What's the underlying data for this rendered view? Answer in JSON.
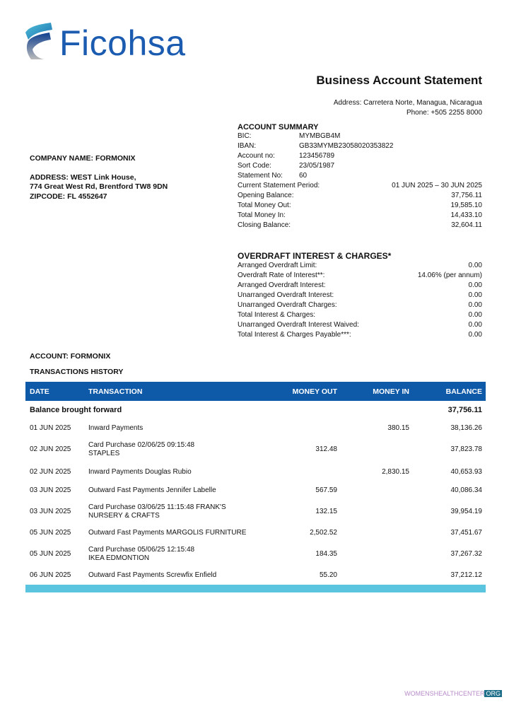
{
  "brand": {
    "name": "Ficohsa",
    "colors": {
      "primary": "#1b5bb0",
      "accent": "#5bc4df"
    }
  },
  "header": {
    "title": "Business Account Statement",
    "address": "Address: Carretera Norte, Managua, Nicaragua",
    "phone": "Phone:  +505 2255 8000"
  },
  "company": {
    "name": "COMPANY NAME: FORMONIX",
    "address_line1": "ADDRESS: WEST Link House,",
    "address_line2": "774 Great West Rd, Brentford TW8 9DN",
    "zipcode": "ZIPCODE: FL 4552647"
  },
  "summary": {
    "heading": "ACCOUNT SUMMARY",
    "short": [
      {
        "k": "BIC:",
        "v": "MYMBGB4M"
      },
      {
        "k": "IBAN:",
        "v": "GB33MYMB23058020353822"
      },
      {
        "k": "Account no:",
        "v": "123456789"
      },
      {
        "k": "Sort Code:",
        "v": "23/05/1987"
      },
      {
        "k": "Statement No:",
        "v": "60"
      }
    ],
    "long": [
      {
        "k": "Current Statement Period:",
        "v": "01 JUN 2025 – 30 JUN 2025"
      },
      {
        "k": "Opening Balance:",
        "v": "37,756.11"
      },
      {
        "k": "Total Money Out:",
        "v": "19,585.10"
      },
      {
        "k": "Total Money In:",
        "v": "14,433.10"
      },
      {
        "k": "Closing Balance:",
        "v": "32,604.11"
      }
    ]
  },
  "overdraft": {
    "heading": "OVERDRAFT INTEREST & CHARGES*",
    "items": [
      {
        "k": "Arranged Overdraft Limit:",
        "v": "0.00"
      },
      {
        "k": "Overdraft Rate of Interest**:",
        "v": "14.06% (per annum)"
      },
      {
        "k": "Arranged Overdraft Interest:",
        "v": "0.00"
      },
      {
        "k": "Unarranged Overdraft Interest:",
        "v": "0.00"
      },
      {
        "k": "Unarranged Overdraft Charges:",
        "v": "0.00"
      },
      {
        "k": "Total Interest & Charges:",
        "v": "0.00"
      },
      {
        "k": "Unarranged Overdraft Interest Waived:",
        "v": "0.00"
      },
      {
        "k": "Total Interest & Charges Payable***:",
        "v": "0.00"
      }
    ]
  },
  "account_label": "ACCOUNT: FORMONIX",
  "history_label": "TRANSACTIONS HISTORY",
  "table": {
    "columns": [
      "DATE",
      "TRANSACTION",
      "MONEY OUT",
      "MONEY IN",
      "BALANCE"
    ],
    "brought_forward": {
      "label": "Balance brought forward",
      "balance": "37,756.11"
    },
    "rows": [
      {
        "date": "01 JUN 2025",
        "tx": "Inward Payments",
        "out": "",
        "in": "380.15",
        "bal": "38,136.26"
      },
      {
        "date": "02 JUN 2025",
        "tx": "Card Purchase 02/06/25 09:15:48\nSTAPLES",
        "out": "312.48",
        "in": "",
        "bal": "37,823.78"
      },
      {
        "date": "02 JUN 2025",
        "tx": "Inward Payments Douglas Rubio",
        "out": "",
        "in": "2,830.15",
        "bal": "40,653.93"
      },
      {
        "date": "03 JUN 2025",
        "tx": "Outward Fast Payments Jennifer Labelle",
        "out": "567.59",
        "in": "",
        "bal": "40,086.34"
      },
      {
        "date": "03 JUN 2025",
        "tx": "Card Purchase 03/06/25 11:15:48 FRANK'S\nNURSERY & CRAFTS",
        "out": "132.15",
        "in": "",
        "bal": "39,954.19"
      },
      {
        "date": "05 JUN 2025",
        "tx": "Outward Fast Payments MARGOLIS FURNITURE",
        "out": "2,502.52",
        "in": "",
        "bal": "37,451.67"
      },
      {
        "date": "05 JUN 2025",
        "tx": "Card Purchase 05/06/25 12:15:48\nIKEA EDMONTION",
        "out": "184.35",
        "in": "",
        "bal": "37,267.32"
      },
      {
        "date": "06 JUN 2025",
        "tx": "Outward Fast Payments Screwfix Enfield",
        "out": "55.20",
        "in": "",
        "bal": "37,212.12"
      }
    ]
  },
  "watermark": {
    "text": "WOMENSHEALTHCENTER",
    "tld": "ORG"
  }
}
